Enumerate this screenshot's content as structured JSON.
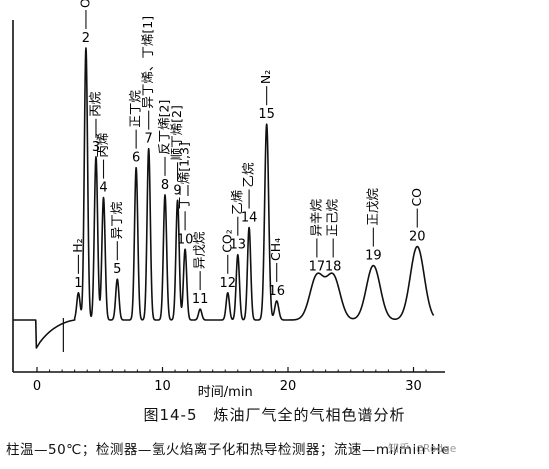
{
  "figure": {
    "caption": "图14-5　炼油厂气全的气相色谱分析",
    "conditions": "柱温—50℃；检测器—氢火焰离子化和热导检测器；流速—ml/min He",
    "watermark": "知乎 @Rodge"
  },
  "chart_data": {
    "type": "line",
    "xlabel": "时间/min",
    "x_ticks": [
      0,
      10,
      20,
      30
    ],
    "xlim": [
      -2,
      32
    ],
    "grid": false,
    "peaks": [
      {
        "id": "1",
        "time": 3.3,
        "height": 0.1,
        "name": "H₂"
      },
      {
        "id": "2",
        "time": 3.9,
        "height": 1.0,
        "name": "O₂"
      },
      {
        "id": "3",
        "time": 4.7,
        "height": 0.6,
        "name": "丙烷"
      },
      {
        "id": "4",
        "time": 5.3,
        "height": 0.45,
        "name": "丙烯"
      },
      {
        "id": "5",
        "time": 6.4,
        "height": 0.15,
        "name": "异丁烷"
      },
      {
        "id": "6",
        "time": 7.9,
        "height": 0.56,
        "name": "正丁烷"
      },
      {
        "id": "7",
        "time": 8.9,
        "height": 0.63,
        "name": "异丁烯、丁烯[1]"
      },
      {
        "id": "8",
        "time": 10.2,
        "height": 0.46,
        "name": "反丁烯[2]"
      },
      {
        "id": "9",
        "time": 11.2,
        "height": 0.44,
        "name": "顺丁烯[2]"
      },
      {
        "id": "10",
        "time": 11.8,
        "height": 0.26,
        "name": "丁二烯[1,3]"
      },
      {
        "id": "11",
        "time": 13.0,
        "height": 0.04,
        "name": "异戊烷"
      },
      {
        "id": "12",
        "time": 15.2,
        "height": 0.1,
        "name": "CO₂"
      },
      {
        "id": "13",
        "time": 16.0,
        "height": 0.24,
        "name": "乙烯"
      },
      {
        "id": "14",
        "time": 16.9,
        "height": 0.34,
        "name": "乙烷"
      },
      {
        "id": "15",
        "time": 18.3,
        "height": 0.72,
        "name": "N₂"
      },
      {
        "id": "16",
        "time": 19.1,
        "height": 0.07,
        "name": "CH₄"
      },
      {
        "id": "17",
        "time": 22.3,
        "height": 0.16,
        "name": "异辛烷"
      },
      {
        "id": "18",
        "time": 23.6,
        "height": 0.16,
        "name": "正己烷"
      },
      {
        "id": "19",
        "time": 26.8,
        "height": 0.2,
        "name": "正戊烷"
      },
      {
        "id": "20",
        "time": 30.3,
        "height": 0.27,
        "name": "CO"
      }
    ]
  }
}
